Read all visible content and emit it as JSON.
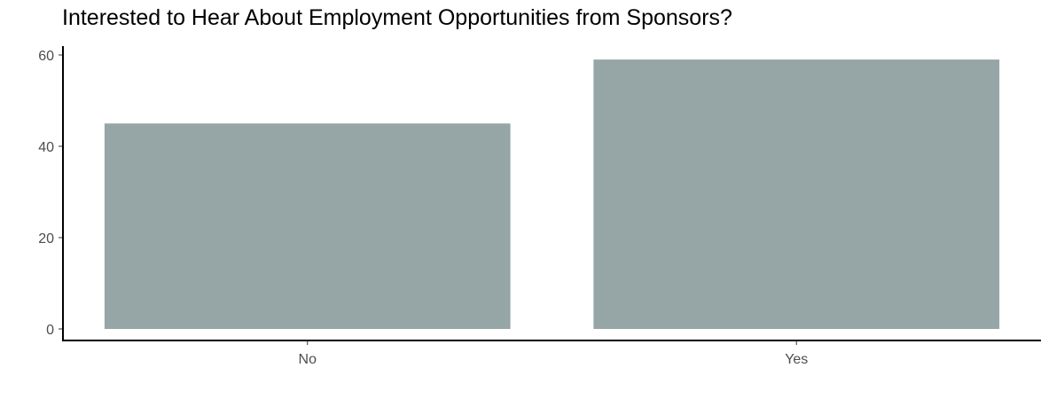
{
  "chart_data": {
    "type": "bar",
    "title": "Interested to Hear About Employment Opportunities from Sponsors?",
    "xlabel": "",
    "ylabel": "",
    "categories": [
      "No",
      "Yes"
    ],
    "values": [
      45,
      59
    ],
    "ylim": [
      0,
      60
    ],
    "yticks": [
      0,
      20,
      40,
      60
    ],
    "grid": false,
    "bar_color": "#96a5a6"
  }
}
